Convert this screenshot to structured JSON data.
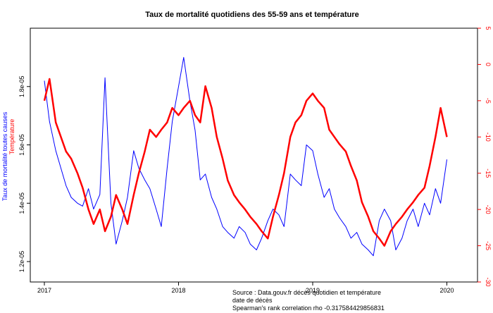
{
  "chart_data": {
    "type": "line",
    "title": "Taux de mortalité quotidiens des 55-59 ans et température",
    "xlabel": "date de décès",
    "ylabel_left": "Taux de mortalité toutes causes",
    "ylabel_right": "Température",
    "caption_source": "Source : Data.gouv.fr décès quotidien et température",
    "caption_correlation": "Spearman's rank correlation rho -0.317584429856831",
    "x_ticks": [
      "2017",
      "2018",
      "2019",
      "2020"
    ],
    "x_range": [
      "2017-01-01",
      "2020-02-15"
    ],
    "y_left_ticks": [
      "1.2e-05",
      "1.4e-05",
      "1.6e-05",
      "1.8e-05"
    ],
    "y_left_range": [
      1.13e-05,
      2e-05
    ],
    "y_right_ticks": [
      "-30",
      "-25",
      "-20",
      "-15",
      "-10",
      "-5",
      "0",
      "5"
    ],
    "y_right_range": [
      -30,
      5
    ],
    "grid": false,
    "series": [
      {
        "name": "Taux de mortalité toutes causes",
        "axis": "left",
        "color": "#0000ff",
        "x": [
          "2017-01-01",
          "2017-01-15",
          "2017-02-01",
          "2017-02-15",
          "2017-03-01",
          "2017-03-15",
          "2017-04-01",
          "2017-04-15",
          "2017-05-01",
          "2017-05-15",
          "2017-06-01",
          "2017-06-15",
          "2017-07-01",
          "2017-07-15",
          "2017-08-01",
          "2017-08-15",
          "2017-09-01",
          "2017-09-15",
          "2017-10-01",
          "2017-10-15",
          "2017-11-01",
          "2017-11-15",
          "2017-12-01",
          "2017-12-15",
          "2018-01-01",
          "2018-01-15",
          "2018-02-01",
          "2018-02-15",
          "2018-03-01",
          "2018-03-15",
          "2018-04-01",
          "2018-04-15",
          "2018-05-01",
          "2018-05-15",
          "2018-06-01",
          "2018-06-15",
          "2018-07-01",
          "2018-07-15",
          "2018-08-01",
          "2018-08-15",
          "2018-09-01",
          "2018-09-15",
          "2018-10-01",
          "2018-10-15",
          "2018-11-01",
          "2018-11-15",
          "2018-12-01",
          "2018-12-15",
          "2019-01-01",
          "2019-01-15",
          "2019-02-01",
          "2019-02-15",
          "2019-03-01",
          "2019-03-15",
          "2019-04-01",
          "2019-04-15",
          "2019-05-01",
          "2019-05-15",
          "2019-06-01",
          "2019-06-15",
          "2019-07-01",
          "2019-07-15",
          "2019-08-01",
          "2019-08-15",
          "2019-09-01",
          "2019-09-15",
          "2019-10-01",
          "2019-10-15",
          "2019-11-01",
          "2019-11-15",
          "2019-12-01",
          "2019-12-15",
          "2020-01-01"
        ],
        "values": [
          1.82e-05,
          1.68e-05,
          1.58e-05,
          1.52e-05,
          1.46e-05,
          1.42e-05,
          1.4e-05,
          1.39e-05,
          1.45e-05,
          1.38e-05,
          1.43e-05,
          1.83e-05,
          1.4e-05,
          1.26e-05,
          1.34e-05,
          1.42e-05,
          1.58e-05,
          1.52e-05,
          1.48e-05,
          1.45e-05,
          1.38e-05,
          1.32e-05,
          1.52e-05,
          1.68e-05,
          1.8e-05,
          1.9e-05,
          1.75e-05,
          1.65e-05,
          1.48e-05,
          1.5e-05,
          1.42e-05,
          1.38e-05,
          1.32e-05,
          1.3e-05,
          1.28e-05,
          1.32e-05,
          1.3e-05,
          1.26e-05,
          1.24e-05,
          1.28e-05,
          1.34e-05,
          1.38e-05,
          1.36e-05,
          1.32e-05,
          1.5e-05,
          1.48e-05,
          1.46e-05,
          1.6e-05,
          1.58e-05,
          1.5e-05,
          1.42e-05,
          1.45e-05,
          1.38e-05,
          1.35e-05,
          1.32e-05,
          1.28e-05,
          1.3e-05,
          1.26e-05,
          1.24e-05,
          1.22e-05,
          1.34e-05,
          1.38e-05,
          1.34e-05,
          1.24e-05,
          1.28e-05,
          1.34e-05,
          1.38e-05,
          1.32e-05,
          1.4e-05,
          1.36e-05,
          1.45e-05,
          1.4e-05,
          1.55e-05
        ]
      },
      {
        "name": "Température",
        "axis": "right",
        "color": "#ff0000",
        "x": [
          "2017-01-01",
          "2017-01-15",
          "2017-02-01",
          "2017-02-15",
          "2017-03-01",
          "2017-03-15",
          "2017-04-01",
          "2017-04-15",
          "2017-05-01",
          "2017-05-15",
          "2017-06-01",
          "2017-06-15",
          "2017-07-01",
          "2017-07-15",
          "2017-08-01",
          "2017-08-15",
          "2017-09-01",
          "2017-09-15",
          "2017-10-01",
          "2017-10-15",
          "2017-11-01",
          "2017-11-15",
          "2017-12-01",
          "2017-12-15",
          "2018-01-01",
          "2018-01-15",
          "2018-02-01",
          "2018-02-15",
          "2018-03-01",
          "2018-03-15",
          "2018-04-01",
          "2018-04-15",
          "2018-05-01",
          "2018-05-15",
          "2018-06-01",
          "2018-06-15",
          "2018-07-01",
          "2018-07-15",
          "2018-08-01",
          "2018-08-15",
          "2018-09-01",
          "2018-09-15",
          "2018-10-01",
          "2018-10-15",
          "2018-11-01",
          "2018-11-15",
          "2018-12-01",
          "2018-12-15",
          "2019-01-01",
          "2019-01-15",
          "2019-02-01",
          "2019-02-15",
          "2019-03-01",
          "2019-03-15",
          "2019-04-01",
          "2019-04-15",
          "2019-05-01",
          "2019-05-15",
          "2019-06-01",
          "2019-06-15",
          "2019-07-01",
          "2019-07-15",
          "2019-08-01",
          "2019-08-15",
          "2019-09-01",
          "2019-09-15",
          "2019-10-01",
          "2019-10-15",
          "2019-11-01",
          "2019-11-15",
          "2019-12-01",
          "2019-12-15",
          "2020-01-01"
        ],
        "values": [
          -5,
          -2,
          -8,
          -10,
          -12,
          -13,
          -15,
          -17,
          -20,
          -22,
          -20,
          -23,
          -21,
          -18,
          -20,
          -22,
          -18,
          -15,
          -12,
          -9,
          -10,
          -9,
          -8,
          -6,
          -7,
          -6,
          -5,
          -7,
          -8,
          -3,
          -6,
          -10,
          -13,
          -16,
          -18,
          -19,
          -20,
          -21,
          -22,
          -23,
          -24,
          -21,
          -18,
          -15,
          -10,
          -8,
          -7,
          -5,
          -4,
          -5,
          -6,
          -9,
          -10,
          -11,
          -12,
          -14,
          -16,
          -19,
          -21,
          -23,
          -24,
          -25,
          -23,
          -22,
          -21,
          -20,
          -19,
          -18,
          -17,
          -14,
          -10,
          -6,
          -10
        ]
      }
    ]
  }
}
